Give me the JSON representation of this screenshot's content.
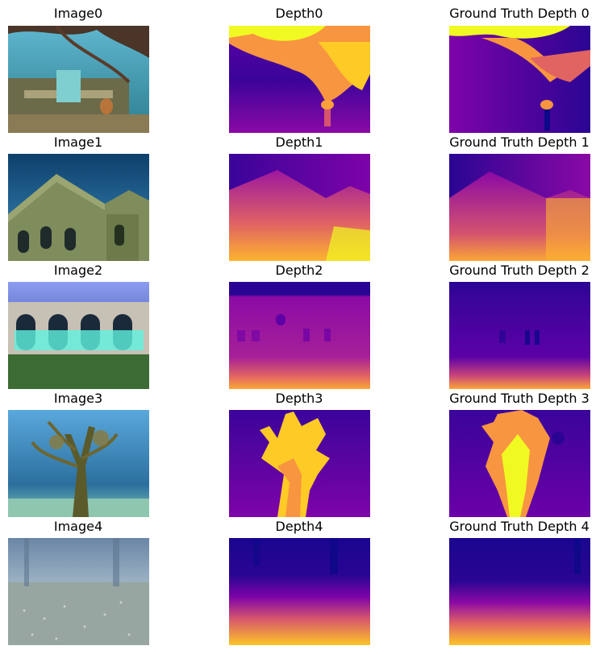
{
  "figure": {
    "rows": [
      {
        "image_title": "Image0",
        "depth_title": "Depth0",
        "gt_title": "Ground Truth Depth 0",
        "image_scene": "underwater-ruins-with-branches",
        "depth_palette": "plasma",
        "colors": {
          "water": "#3b93b5",
          "sand": "#c9b98a",
          "ruin": "#6b6b4a",
          "deep": "#0d0887",
          "mid": "#7e03a8",
          "near": "#f0f921"
        }
      },
      {
        "image_title": "Image1",
        "depth_title": "Depth1",
        "gt_title": "Ground Truth Depth 1",
        "image_scene": "submerged-stone-building-with-arches",
        "depth_palette": "plasma",
        "colors": {
          "water": "#1f6f9e",
          "wall": "#8f9a6a",
          "roof": "#6f7d4a",
          "deep": "#2a0593",
          "mid": "#9c179e",
          "near": "#fdb42f"
        }
      },
      {
        "image_title": "Image2",
        "depth_title": "Depth2",
        "gt_title": "Ground Truth Depth 2",
        "image_scene": "flooded-arcade-with-glowing-windows",
        "depth_palette": "plasma",
        "colors": {
          "water": "#6a7fd6",
          "glow": "#5ff2e0",
          "grass": "#3c6b34",
          "deep": "#2a0593",
          "mid": "#8b0aa5",
          "near": "#fca636"
        }
      },
      {
        "image_title": "Image3",
        "depth_title": "Depth3",
        "gt_title": "Ground Truth Depth 3",
        "image_scene": "underwater-tree-covered-in-algae",
        "depth_palette": "plasma",
        "colors": {
          "water": "#3f8fc4",
          "tree": "#5a5a2a",
          "sand": "#8ec6b0",
          "deep": "#2a0593",
          "mid": "#7e03a8",
          "near": "#fdc527"
        }
      },
      {
        "image_title": "Image4",
        "depth_title": "Depth4",
        "gt_title": "Ground Truth Depth 4",
        "image_scene": "murky-seabed-with-pebbles",
        "depth_palette": "plasma",
        "colors": {
          "water": "#7f97b0",
          "floor": "#9aa7a5",
          "deep": "#2a0593",
          "mid": "#b52f8c",
          "near": "#fdc527"
        }
      }
    ]
  }
}
